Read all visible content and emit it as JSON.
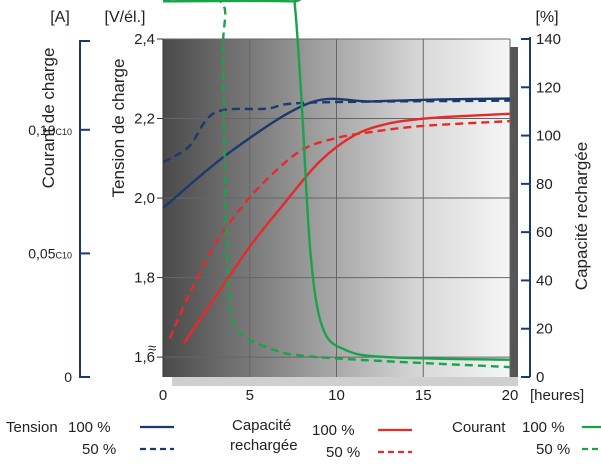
{
  "chart_data": {
    "type": "line",
    "x_axis": {
      "label": "[heures]",
      "ticks": [
        0,
        5,
        10,
        15,
        20
      ],
      "range": [
        0,
        20
      ]
    },
    "y_left_current": {
      "unit": "[A]",
      "label": "Courant de charge",
      "ticks": [
        {
          "value": 0,
          "label": "0"
        },
        {
          "value": 0.05,
          "label": "0,05",
          "sub": "C10"
        },
        {
          "value": 0.1,
          "label": "0,10",
          "sub": "C10"
        }
      ]
    },
    "y_left_voltage": {
      "unit": "[V/él.]",
      "label": "Tension de charge",
      "ticks": [
        "1,6",
        "1,8",
        "2,0",
        "2,2",
        "2,4"
      ],
      "range": [
        1.55,
        2.4
      ],
      "break_symbol": "≈"
    },
    "y_right": {
      "unit": "[%]",
      "label": "Capacité rechargée",
      "ticks": [
        0,
        20,
        40,
        60,
        80,
        100,
        120,
        140
      ],
      "range": [
        0,
        140
      ]
    },
    "grid": true,
    "series": [
      {
        "name": "Tension 100 %",
        "axis": "voltage",
        "color": "#1a3a6e",
        "style": "solid",
        "points": [
          [
            0,
            1.975
          ],
          [
            4,
            2.12
          ],
          [
            8.5,
            2.24
          ],
          [
            12,
            2.243
          ],
          [
            16,
            2.248
          ],
          [
            20,
            2.25
          ]
        ]
      },
      {
        "name": "Tension 50 %",
        "axis": "voltage",
        "color": "#1a3a6e",
        "style": "dashed",
        "points": [
          [
            0,
            2.09
          ],
          [
            1.5,
            2.13
          ],
          [
            3,
            2.215
          ],
          [
            6,
            2.225
          ],
          [
            8.5,
            2.24
          ],
          [
            20,
            2.245
          ]
        ]
      },
      {
        "name": "Capacité rechargée 100 %",
        "axis": "percent",
        "color": "#e62a2a",
        "style": "solid",
        "points": [
          [
            1.2,
            14
          ],
          [
            3,
            33
          ],
          [
            5,
            54
          ],
          [
            7,
            72
          ],
          [
            9,
            89
          ],
          [
            11,
            100
          ],
          [
            13,
            105
          ],
          [
            15,
            107
          ],
          [
            17,
            108
          ],
          [
            20,
            109
          ]
        ]
      },
      {
        "name": "Capacité rechargée 50 %",
        "axis": "percent",
        "color": "#e62a2a",
        "style": "dashed",
        "points": [
          [
            0.4,
            16
          ],
          [
            1.5,
            34
          ],
          [
            3,
            55
          ],
          [
            4.5,
            70
          ],
          [
            6,
            82
          ],
          [
            8,
            94
          ],
          [
            10,
            99
          ],
          [
            12,
            101.5
          ],
          [
            15,
            104
          ],
          [
            20,
            106
          ]
        ]
      },
      {
        "name": "Courant 100 %",
        "axis": "current",
        "color": "#1aa34a",
        "style": "solid",
        "points": [
          [
            0,
            0.152
          ],
          [
            7.3,
            0.152
          ],
          [
            7.6,
            0.15
          ],
          [
            8,
            0.11
          ],
          [
            8.5,
            0.05
          ],
          [
            9.2,
            0.02
          ],
          [
            10.5,
            0.011
          ],
          [
            13,
            0.008
          ],
          [
            20,
            0.007
          ]
        ]
      },
      {
        "name": "Courant 50 %",
        "axis": "current",
        "color": "#1aa34a",
        "style": "dashed",
        "points": [
          [
            0,
            0.152
          ],
          [
            3.3,
            0.152
          ],
          [
            3.45,
            0.13
          ],
          [
            3.6,
            0.07
          ],
          [
            3.8,
            0.035
          ],
          [
            4.2,
            0.02
          ],
          [
            6,
            0.012
          ],
          [
            9,
            0.008
          ],
          [
            20,
            0.004
          ]
        ]
      }
    ],
    "legend": {
      "placement": "bottom",
      "groups": [
        {
          "title_lines": [
            "Tension"
          ],
          "color": "#1a3a6e",
          "items": [
            {
              "label": "100 %",
              "style": "solid"
            },
            {
              "label": "50 %",
              "style": "dashed"
            }
          ]
        },
        {
          "title_lines": [
            "Capacité",
            "rechargée"
          ],
          "color": "#e62a2a",
          "items": [
            {
              "label": "100 %",
              "style": "solid"
            },
            {
              "label": "50 %",
              "style": "dashed"
            }
          ]
        },
        {
          "title_lines": [
            "Courant"
          ],
          "color": "#1aa34a",
          "items": [
            {
              "label": "100 %",
              "style": "solid"
            },
            {
              "label": "50 %",
              "style": "dashed"
            }
          ]
        }
      ]
    },
    "colors": {
      "current_axis": "#1a3a6e",
      "percent_axis": "#1a3a6e",
      "grid": "#666666"
    }
  }
}
